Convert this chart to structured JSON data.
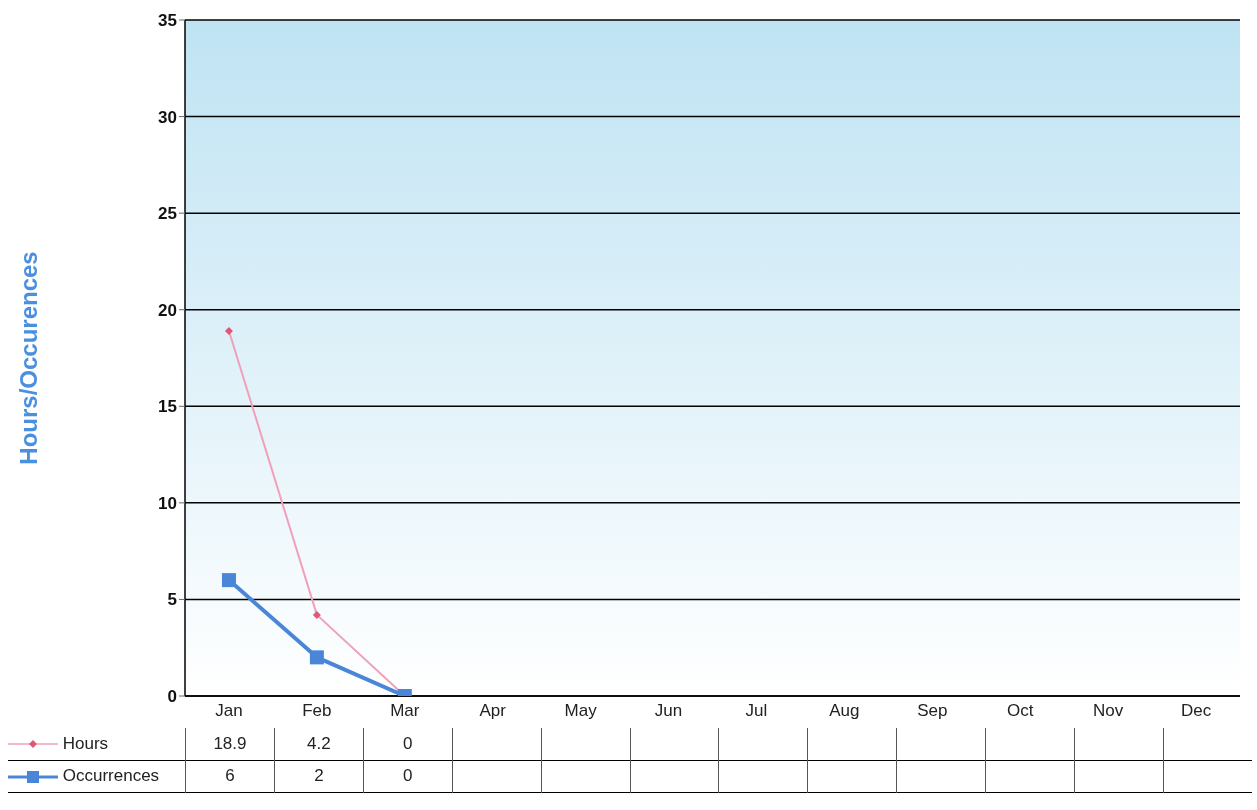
{
  "chart_data": {
    "type": "line",
    "ylabel": "Hours/Occurences",
    "categories": [
      "Jan",
      "Feb",
      "Mar",
      "Apr",
      "May",
      "Jun",
      "Jul",
      "Aug",
      "Sep",
      "Oct",
      "Nov",
      "Dec"
    ],
    "series": [
      {
        "name": "Hours",
        "color": "#f0a0b8",
        "marker": "diamond",
        "values": [
          18.9,
          4.2,
          0,
          null,
          null,
          null,
          null,
          null,
          null,
          null,
          null,
          null
        ]
      },
      {
        "name": "Occurrences",
        "color": "#4a86d8",
        "marker": "square",
        "values": [
          6,
          2,
          0,
          null,
          null,
          null,
          null,
          null,
          null,
          null,
          null,
          null
        ]
      }
    ],
    "ylim": [
      0,
      35
    ],
    "yticks": [
      0,
      5,
      10,
      15,
      20,
      25,
      30,
      35
    ],
    "grid": "y",
    "legend": "bottom left",
    "data_labels": true
  }
}
